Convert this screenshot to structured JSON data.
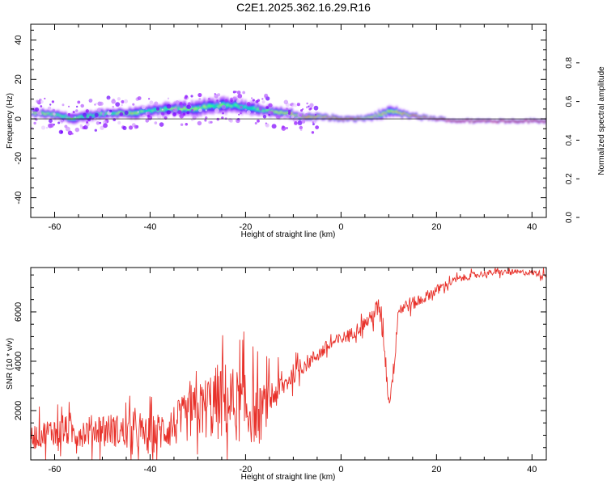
{
  "title": "C2E1.2025.362.16.29.R16",
  "colors": {
    "snr_line": "#e8312a",
    "colorbar_stops": [
      "#ff0090",
      "#ff0000",
      "#ff8000",
      "#ffff00",
      "#00ff00",
      "#00ffff",
      "#0000ff",
      "#8000ff",
      "#e6c8ff",
      "#ffffff"
    ]
  },
  "chart_data": [
    {
      "type": "heatmap",
      "xlabel": "Height of straight line (km)",
      "ylabel": "Frequency (Hz)",
      "xlim": [
        -65,
        43
      ],
      "ylim": [
        -50,
        48
      ],
      "xticks": [
        -60,
        -40,
        -20,
        0,
        20,
        40
      ],
      "yticks": [
        -40,
        -20,
        0,
        20,
        40
      ],
      "xtick_labels": [
        "-60",
        "-40",
        "-20",
        "0",
        "20",
        "40"
      ],
      "ytick_labels": [
        "-40",
        "-20",
        "0",
        "20",
        "40"
      ],
      "ridge": {
        "x": [
          -64,
          -60,
          -56,
          -52,
          -48,
          -44,
          -40,
          -36,
          -32,
          -28,
          -24,
          -20,
          -16,
          -12,
          -8,
          -4,
          0,
          4,
          8,
          10,
          12,
          16,
          20,
          24,
          28,
          32,
          36,
          40,
          43
        ],
        "freq": [
          3,
          2,
          0,
          2,
          3,
          3,
          4,
          5,
          5,
          6,
          7,
          6,
          4,
          3,
          1,
          1,
          0,
          0,
          2,
          4,
          3,
          1,
          0,
          -1,
          -1,
          -1,
          -1,
          -1,
          -1
        ],
        "width": [
          2.5,
          3,
          3.5,
          3,
          3,
          3.5,
          4,
          4,
          4.5,
          5,
          5,
          4.5,
          3.5,
          3,
          2,
          2,
          1.5,
          1.5,
          2.5,
          3,
          2.5,
          1.5,
          1.2,
          1,
          1,
          1,
          1,
          1,
          1
        ],
        "intensity": [
          0.7,
          0.55,
          0.6,
          0.5,
          0.55,
          0.6,
          0.5,
          0.55,
          0.6,
          0.55,
          0.5,
          0.5,
          0.6,
          0.65,
          0.85,
          0.9,
          0.95,
          0.8,
          0.7,
          0.65,
          0.75,
          0.85,
          0.8,
          0.95,
          0.97,
          0.97,
          0.97,
          0.97,
          0.97
        ]
      },
      "colorbar": {
        "label": "Normalized spectral amplitude",
        "range": [
          0,
          1
        ],
        "ticks": [
          0.0,
          0.2,
          0.4,
          0.6,
          0.8
        ],
        "tick_labels": [
          "0.0",
          "0.2",
          "0.4",
          "0.6",
          "0.8"
        ]
      }
    },
    {
      "type": "line",
      "xlabel": "Height of straight line (km)",
      "ylabel": "SNR (10 * v/v)",
      "xlim": [
        -65,
        43
      ],
      "ylim": [
        0,
        7800
      ],
      "xticks": [
        -60,
        -40,
        -20,
        0,
        20,
        40
      ],
      "yticks": [
        2000,
        4000,
        6000
      ],
      "xtick_labels": [
        "-60",
        "-40",
        "-20",
        "0",
        "20",
        "40"
      ],
      "ytick_labels": [
        "2000",
        "4000",
        "6000"
      ],
      "envelope": {
        "x": [
          -65,
          -60,
          -55,
          -50,
          -45,
          -40,
          -35,
          -30,
          -25,
          -20,
          -17,
          -15,
          -12,
          -10,
          -6,
          -2,
          2,
          6,
          8,
          9,
          10,
          11,
          12,
          14,
          16,
          20,
          24,
          28,
          32,
          36,
          40,
          43
        ],
        "mean": [
          900,
          1200,
          1100,
          1300,
          1100,
          1000,
          1400,
          2000,
          2400,
          2100,
          1800,
          2500,
          3000,
          3500,
          4100,
          4700,
          5100,
          5700,
          6200,
          5000,
          2300,
          3600,
          6100,
          6300,
          6400,
          6900,
          7300,
          7500,
          7600,
          7600,
          7600,
          7500
        ],
        "noise": [
          500,
          600,
          600,
          650,
          700,
          750,
          900,
          1100,
          1700,
          1400,
          1200,
          800,
          500,
          400,
          300,
          300,
          250,
          300,
          500,
          700,
          300,
          400,
          350,
          300,
          250,
          200,
          150,
          130,
          120,
          120,
          120,
          150
        ]
      }
    }
  ]
}
